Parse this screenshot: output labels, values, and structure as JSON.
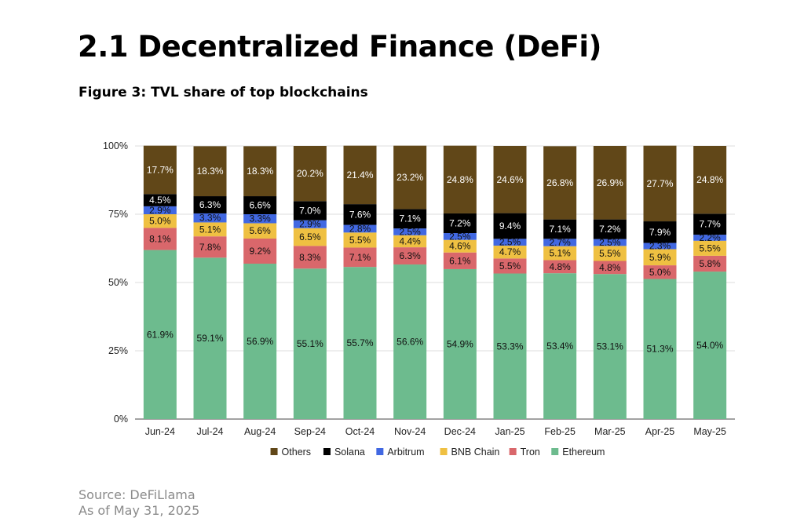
{
  "heading": "2.1 Decentralized Finance (DeFi)",
  "figure_title": "Figure 3: TVL share of top blockchains",
  "source": "Source: DeFiLlama",
  "as_of": "As of May 31, 2025",
  "colors": {
    "Ethereum": "#6dbb8e",
    "Tron": "#d9676b",
    "BNB Chain": "#efc042",
    "Arbitrum": "#4168e2",
    "Solana": "#000000",
    "Others": "#614718"
  },
  "chart_data": {
    "type": "bar",
    "stacked": true,
    "title": "Figure 3: TVL share of top blockchains",
    "xlabel": "",
    "ylabel": "",
    "ylim": [
      0,
      100
    ],
    "yticks": [
      "0%",
      "25%",
      "50%",
      "75%",
      "100%"
    ],
    "categories": [
      "Jun-24",
      "Jul-24",
      "Aug-24",
      "Sep-24",
      "Oct-24",
      "Nov-24",
      "Dec-24",
      "Jan-25",
      "Feb-25",
      "Mar-25",
      "Apr-25",
      "May-25"
    ],
    "series": [
      {
        "name": "Ethereum",
        "values": [
          61.9,
          59.1,
          56.9,
          55.1,
          55.7,
          56.6,
          54.9,
          53.3,
          53.4,
          53.1,
          51.3,
          54.0
        ]
      },
      {
        "name": "Tron",
        "values": [
          8.1,
          7.8,
          9.2,
          8.3,
          7.1,
          6.3,
          6.1,
          5.5,
          4.8,
          4.8,
          5.0,
          5.8
        ]
      },
      {
        "name": "BNB Chain",
        "values": [
          5.0,
          5.1,
          5.6,
          6.5,
          5.5,
          4.4,
          4.6,
          4.7,
          5.1,
          5.5,
          5.9,
          5.5
        ]
      },
      {
        "name": "Arbitrum",
        "values": [
          2.9,
          3.3,
          3.3,
          2.9,
          2.8,
          2.5,
          2.5,
          2.5,
          2.7,
          2.5,
          2.3,
          2.2
        ]
      },
      {
        "name": "Solana",
        "values": [
          4.5,
          6.3,
          6.6,
          7.0,
          7.6,
          7.1,
          7.2,
          9.4,
          7.1,
          7.2,
          7.9,
          7.7
        ]
      },
      {
        "name": "Others",
        "values": [
          17.7,
          18.3,
          18.3,
          20.2,
          21.4,
          23.2,
          24.8,
          24.6,
          26.8,
          26.9,
          27.7,
          24.8
        ]
      }
    ],
    "legend": [
      "Others",
      "Solana",
      "Arbitrum",
      "BNB Chain",
      "Tron",
      "Ethereum"
    ],
    "legend_position": "bottom",
    "grid": true
  }
}
